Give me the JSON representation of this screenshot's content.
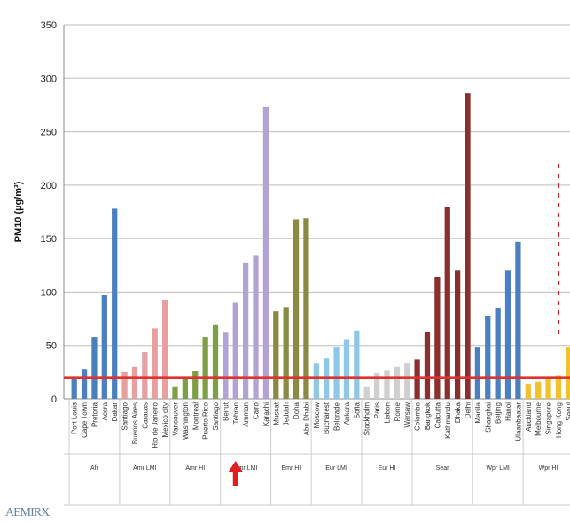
{
  "chart_data": {
    "type": "bar",
    "ylabel": "PM10 (µg/m³)",
    "ylim": [
      0,
      350
    ],
    "yticks": [
      0,
      50,
      100,
      150,
      200,
      250,
      300,
      350
    ],
    "grid": true,
    "reference_line": {
      "value": 20,
      "color": "#e03030"
    },
    "highlighted_category": "Tehran",
    "bars": [
      {
        "label": "Port Louis",
        "value": 20,
        "group": "Afr",
        "color": "#4a7fc0"
      },
      {
        "label": "Cape Town",
        "value": 28,
        "group": "Afr",
        "color": "#4a7fc0"
      },
      {
        "label": "Pretoria",
        "value": 58,
        "group": "Afr",
        "color": "#4a7fc0"
      },
      {
        "label": "Accra",
        "value": 97,
        "group": "Afr",
        "color": "#4a7fc0"
      },
      {
        "label": "Dakar",
        "value": 178,
        "group": "Afr",
        "color": "#4a7fc0"
      },
      {
        "label": "Santiago",
        "value": 25,
        "group": "Amr LMI",
        "color": "#e6a0a0"
      },
      {
        "label": "Buenos Aires",
        "value": 30,
        "group": "Amr LMI",
        "color": "#e6a0a0"
      },
      {
        "label": "Caracas",
        "value": 44,
        "group": "Amr LMI",
        "color": "#e6a0a0"
      },
      {
        "label": "Rio de Janeiro",
        "value": 66,
        "group": "Amr LMI",
        "color": "#e6a0a0"
      },
      {
        "label": "Mexico city",
        "value": 93,
        "group": "Amr LMI",
        "color": "#e6a0a0"
      },
      {
        "label": "Vancouver",
        "value": 11,
        "group": "Amr HI",
        "color": "#7da044"
      },
      {
        "label": "Washington",
        "value": 19,
        "group": "Amr HI",
        "color": "#7da044"
      },
      {
        "label": "Montreal",
        "value": 26,
        "group": "Amr HI",
        "color": "#7da044"
      },
      {
        "label": "Puerto Rico",
        "value": 58,
        "group": "Amr HI",
        "color": "#7da044"
      },
      {
        "label": "Santiago",
        "value": 69,
        "group": "Amr HI",
        "color": "#7da044"
      },
      {
        "label": "Beirut",
        "value": 62,
        "group": "Emr LMI",
        "color": "#b3a3d4"
      },
      {
        "label": "Tehran",
        "value": 90,
        "group": "Emr LMI",
        "color": "#b3a3d4"
      },
      {
        "label": "Amman",
        "value": 127,
        "group": "Emr LMI",
        "color": "#b3a3d4"
      },
      {
        "label": "Cairo",
        "value": 134,
        "group": "Emr LMI",
        "color": "#b3a3d4"
      },
      {
        "label": "Karachi",
        "value": 273,
        "group": "Emr LMI",
        "color": "#b3a3d4"
      },
      {
        "label": "Muscat",
        "value": 82,
        "group": "Emr HI",
        "color": "#8a8a42"
      },
      {
        "label": "Jeddah",
        "value": 86,
        "group": "Emr HI",
        "color": "#8a8a42"
      },
      {
        "label": "Doha",
        "value": 168,
        "group": "Emr HI",
        "color": "#8a8a42"
      },
      {
        "label": "Abu Dhabi",
        "value": 169,
        "group": "Emr HI",
        "color": "#8a8a42"
      },
      {
        "label": "Moscow",
        "value": 33,
        "group": "Eur LMI",
        "color": "#8ec8e8"
      },
      {
        "label": "Bucharest",
        "value": 38,
        "group": "Eur LMI",
        "color": "#8ec8e8"
      },
      {
        "label": "Belgrade",
        "value": 48,
        "group": "Eur LMI",
        "color": "#8ec8e8"
      },
      {
        "label": "Ankara",
        "value": 56,
        "group": "Eur LMI",
        "color": "#8ec8e8"
      },
      {
        "label": "Sofia",
        "value": 64,
        "group": "Eur LMI",
        "color": "#8ec8e8"
      },
      {
        "label": "Stockholm",
        "value": 11,
        "group": "Eur HI",
        "color": "#cfcfcf"
      },
      {
        "label": "Paris",
        "value": 24,
        "group": "Eur HI",
        "color": "#cfcfcf"
      },
      {
        "label": "Lisbon",
        "value": 27,
        "group": "Eur HI",
        "color": "#cfcfcf"
      },
      {
        "label": "Rome",
        "value": 30,
        "group": "Eur HI",
        "color": "#cfcfcf"
      },
      {
        "label": "Warsaw",
        "value": 34,
        "group": "Eur HI",
        "color": "#cfcfcf"
      },
      {
        "label": "Colombo",
        "value": 37,
        "group": "Sear",
        "color": "#8b2e2e"
      },
      {
        "label": "Bangkok",
        "value": 63,
        "group": "Sear",
        "color": "#8b2e2e"
      },
      {
        "label": "Calcutta",
        "value": 114,
        "group": "Sear",
        "color": "#8b2e2e"
      },
      {
        "label": "Kathmandu",
        "value": 180,
        "group": "Sear",
        "color": "#8b2e2e"
      },
      {
        "label": "Dhaka",
        "value": 120,
        "group": "Sear",
        "color": "#8b2e2e"
      },
      {
        "label": "Delhi",
        "value": 286,
        "group": "Sear",
        "color": "#8b2e2e"
      },
      {
        "label": "Manila",
        "value": 48,
        "group": "Wpr LMI",
        "color": "#4a7fc0"
      },
      {
        "label": "Shanghai",
        "value": 78,
        "group": "Wpr LMI",
        "color": "#4a7fc0"
      },
      {
        "label": "Beijing",
        "value": 85,
        "group": "Wpr LMI",
        "color": "#4a7fc0"
      },
      {
        "label": "Hanoi",
        "value": 120,
        "group": "Wpr LMI",
        "color": "#4a7fc0"
      },
      {
        "label": "Ulaanbaatar",
        "value": 147,
        "group": "Wpr LMI",
        "color": "#4a7fc0"
      },
      {
        "label": "Auckland",
        "value": 14,
        "group": "Wpr HI",
        "color": "#f2c12e"
      },
      {
        "label": "Melbourne",
        "value": 16,
        "group": "Wpr HI",
        "color": "#f2c12e"
      },
      {
        "label": "Singapore",
        "value": 19,
        "group": "Wpr HI",
        "color": "#f2c12e"
      },
      {
        "label": "Hong Kong",
        "value": 22,
        "group": "Wpr HI",
        "color": "#f2c12e"
      },
      {
        "label": "Seoul",
        "value": 48,
        "group": "Wpr HI",
        "color": "#f2c12e"
      }
    ],
    "groups": [
      "Afr",
      "Amr LMI",
      "Amr HI",
      "Emr LMI",
      "Emr HI",
      "Eur LMI",
      "Eur HI",
      "Sear",
      "Wpr LMI",
      "Wpr HI"
    ],
    "annotations": [
      {
        "type": "arrow",
        "color": "#e02020",
        "target": "Tehran"
      },
      {
        "type": "dashed-vertical-line",
        "color": "#d02020",
        "note": "near right edge"
      }
    ]
  },
  "logo_text": "AEMIRX"
}
